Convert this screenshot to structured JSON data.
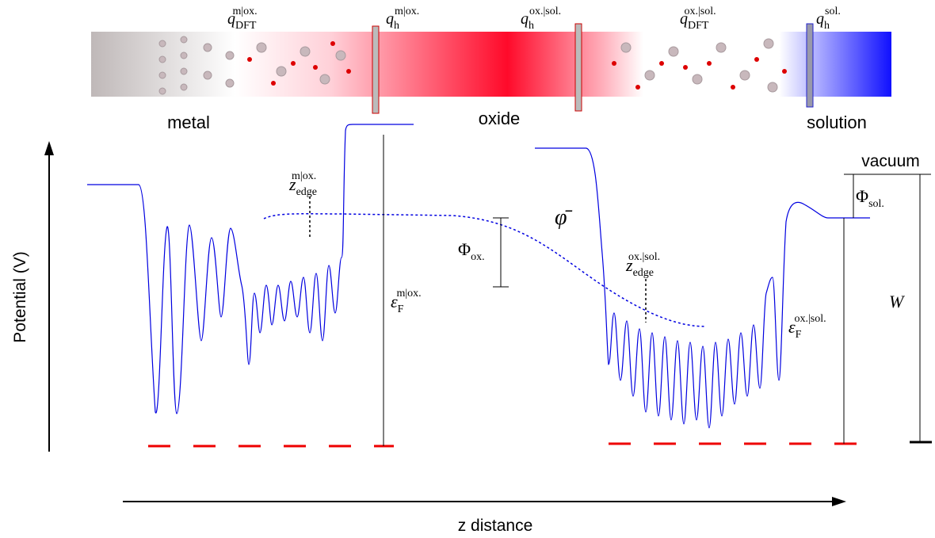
{
  "header": {
    "q_dft_m_ox": {
      "base": "q",
      "sub": "DFT",
      "sup": "m|ox."
    },
    "q_h_m_ox": {
      "base": "q",
      "sub": "h",
      "sup": "m|ox."
    },
    "q_h_ox_sol": {
      "base": "q",
      "sub": "h",
      "sup": "ox.|sol."
    },
    "q_dft_ox_sol": {
      "base": "q",
      "sub": "DFT",
      "sup": "ox.|sol."
    },
    "q_h_sol": {
      "base": "q",
      "sub": "h",
      "sup": "sol."
    },
    "regions": [
      "metal",
      "oxide",
      "solution"
    ]
  },
  "plot": {
    "y_axis_label": "Potential (V)",
    "x_axis_label": "z distance",
    "vacuum": "vacuum",
    "phi_sol": {
      "base": "Φ",
      "sub": "sol."
    },
    "phi_ox": {
      "base": "Φ",
      "sub": "ox."
    },
    "phi_bar": "φ̄",
    "z_edge_m_ox": {
      "base": "z",
      "sub": "edge",
      "sup": "m|ox."
    },
    "z_edge_ox_sol": {
      "base": "z",
      "sub": "edge",
      "sup": "ox.|sol."
    },
    "eps_f_m_ox": {
      "base": "ε",
      "sub": "F",
      "sup": "m|ox."
    },
    "eps_f_ox_sol": {
      "base": "ε",
      "sub": "F",
      "sup": "ox.|sol."
    },
    "work_function": "W"
  }
}
